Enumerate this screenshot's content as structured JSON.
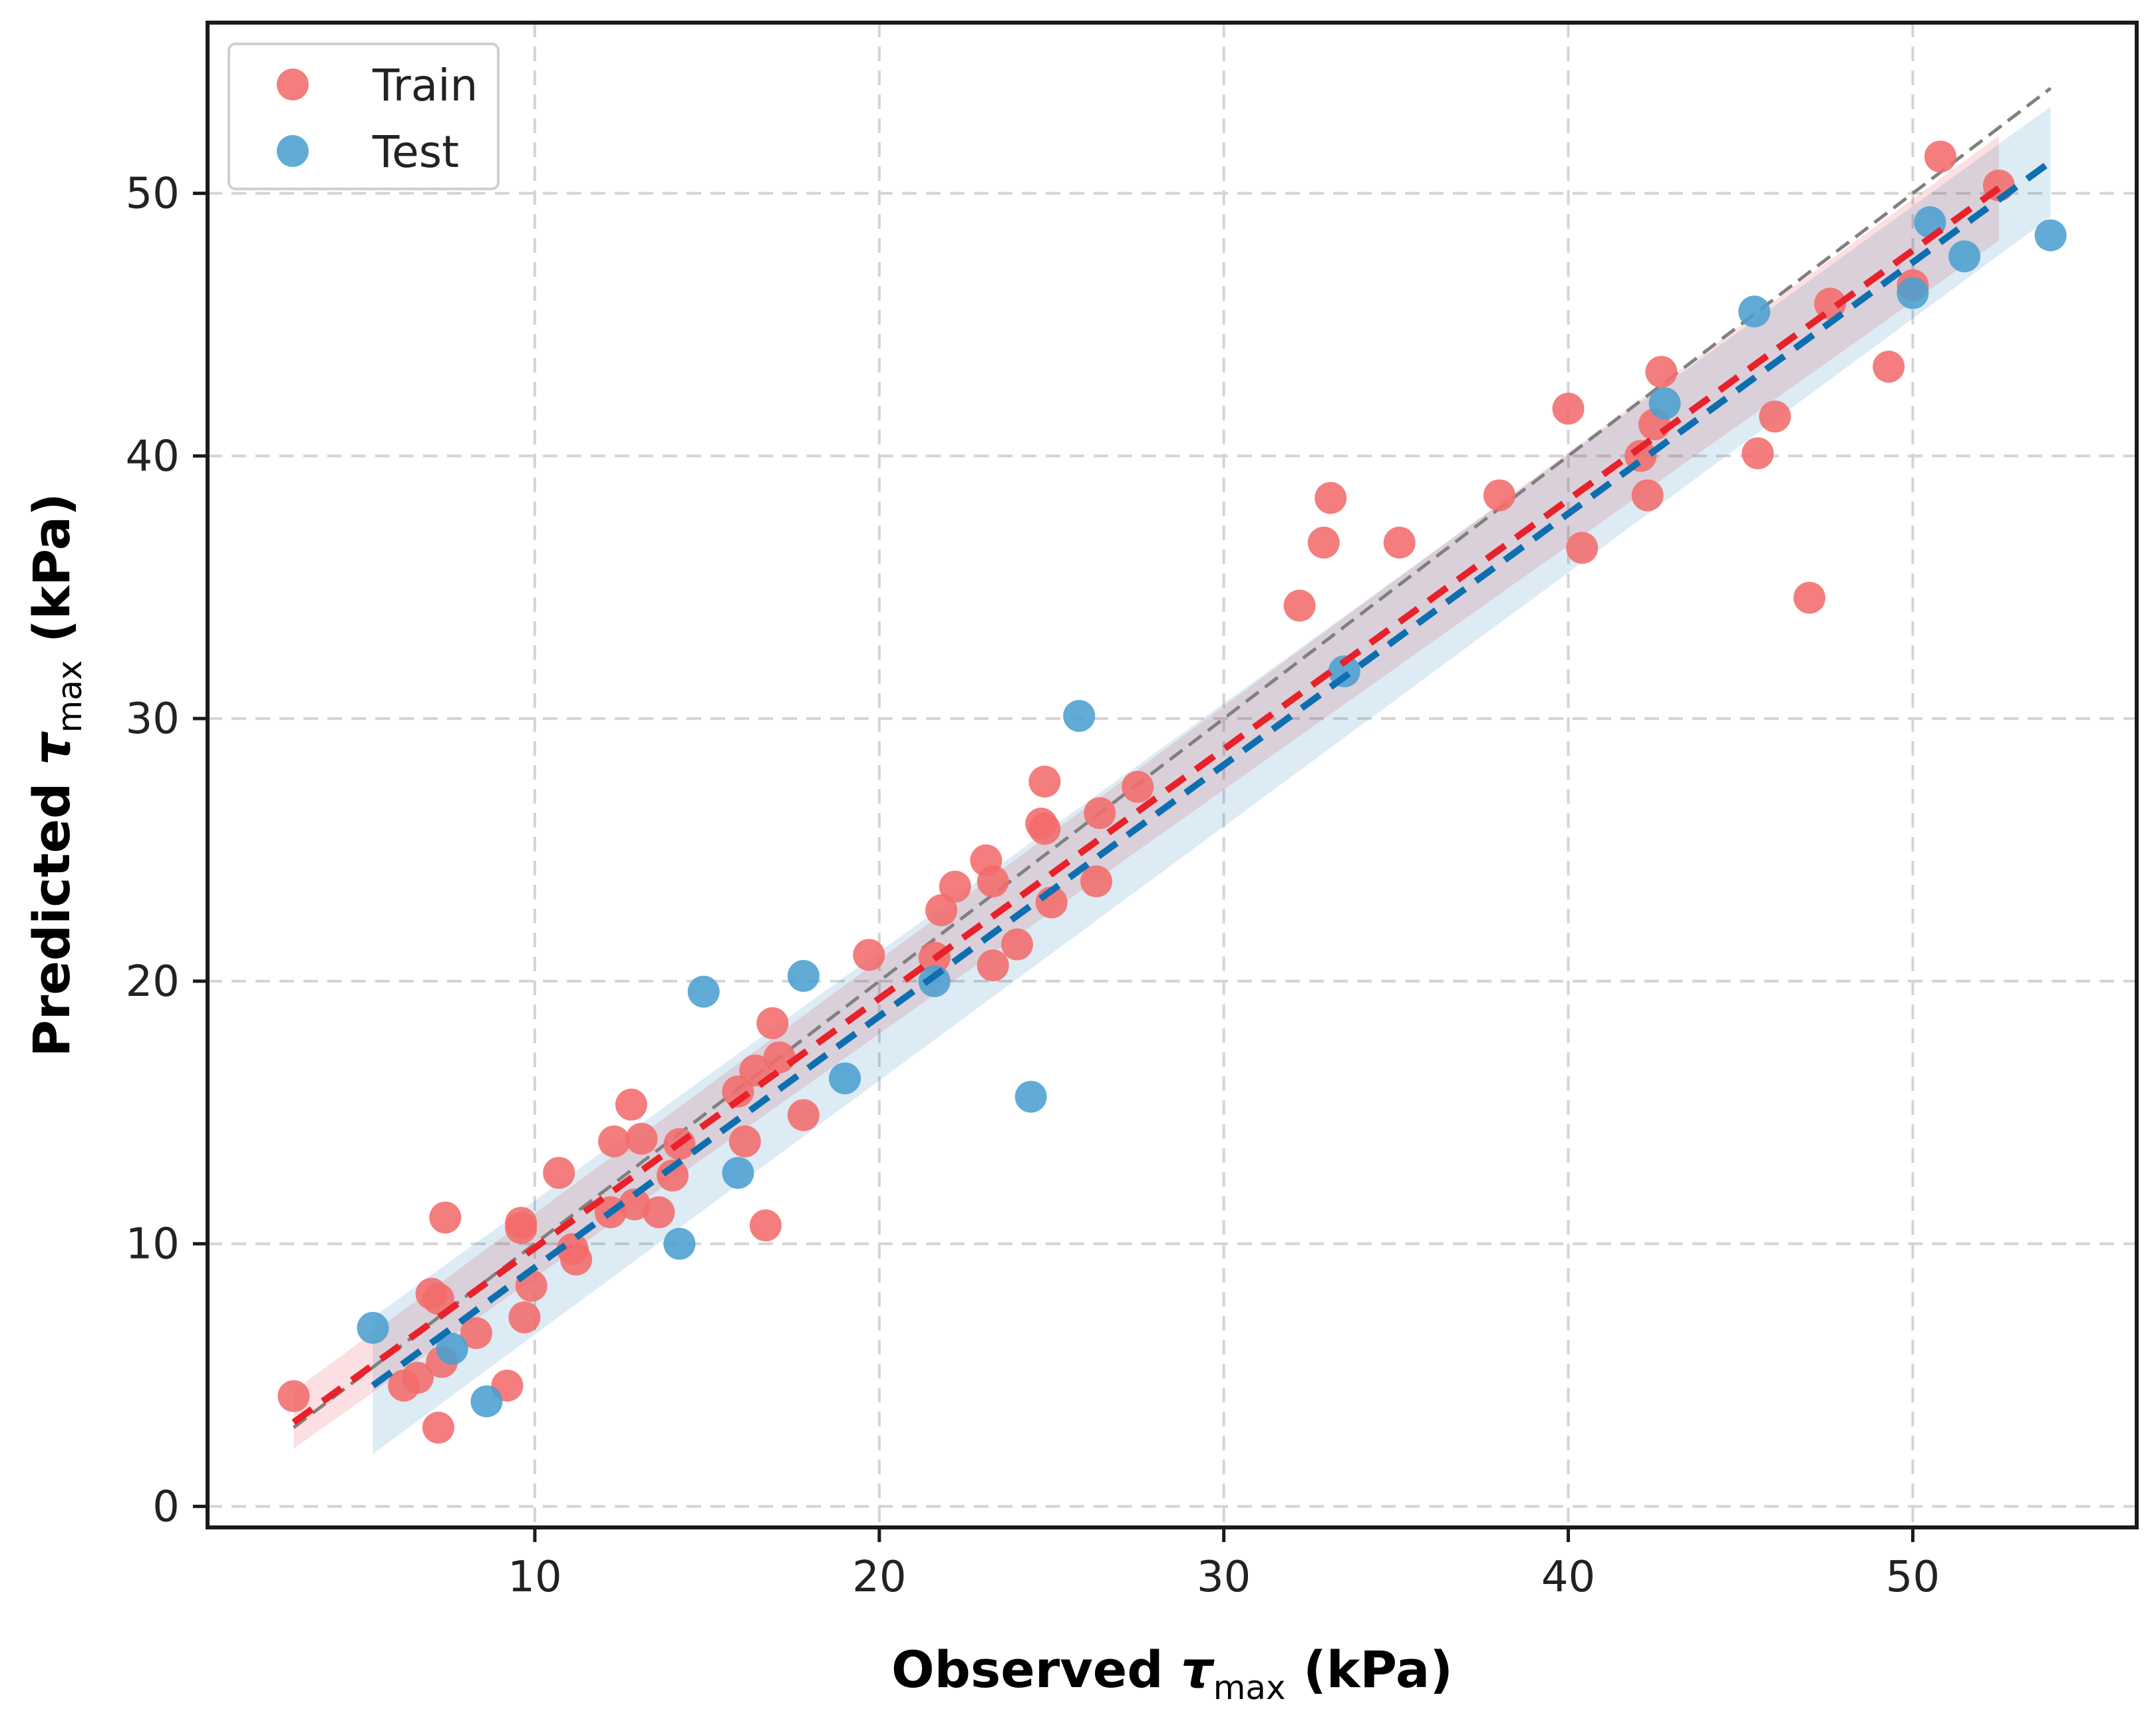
{
  "chart_data": {
    "type": "scatter",
    "xlabel": {
      "prefix": "Observed ",
      "symbol": "τ",
      "sub": "max",
      "suffix": " (kPa)"
    },
    "ylabel": {
      "prefix": "Predicted ",
      "symbol": "τ",
      "sub": "max",
      "suffix": " (kPa)"
    },
    "xlim": [
      0.5,
      56.5
    ],
    "ylim": [
      -0.8,
      56.5
    ],
    "x_ticks": [
      10,
      20,
      30,
      40,
      50
    ],
    "y_ticks": [
      0,
      10,
      20,
      30,
      40,
      50
    ],
    "grid": true,
    "legend_position": "top-left",
    "identity_line": {
      "x": [
        3,
        54
      ],
      "y": [
        3,
        54
      ],
      "color": "#808080"
    },
    "series": [
      {
        "name": "Train",
        "color": "#f26b6b",
        "fit_color": "#e8212a",
        "fit_x": [
          3,
          52.5
        ],
        "fit_y": [
          3.2,
          50.2
        ],
        "band_lower": [
          2.2,
          48.2
        ],
        "band_upper": [
          4.4,
          52.2
        ],
        "points": [
          [
            3,
            4.2
          ],
          [
            6.2,
            4.6
          ],
          [
            6.6,
            4.9
          ],
          [
            7.0,
            8.1
          ],
          [
            7.2,
            7.9
          ],
          [
            7.2,
            3.0
          ],
          [
            7.3,
            5.5
          ],
          [
            7.4,
            11.0
          ],
          [
            8.3,
            6.6
          ],
          [
            9.2,
            4.6
          ],
          [
            9.6,
            10.6
          ],
          [
            9.6,
            10.8
          ],
          [
            9.7,
            7.2
          ],
          [
            9.9,
            8.4
          ],
          [
            10.7,
            12.7
          ],
          [
            11.2,
            9.4
          ],
          [
            11.1,
            9.8
          ],
          [
            12.2,
            11.2
          ],
          [
            12.3,
            13.9
          ],
          [
            12.8,
            15.3
          ],
          [
            12.9,
            11.5
          ],
          [
            13.1,
            14.0
          ],
          [
            13.6,
            11.2
          ],
          [
            14.0,
            12.6
          ],
          [
            14.2,
            13.8
          ],
          [
            15.9,
            15.8
          ],
          [
            16.1,
            13.9
          ],
          [
            16.4,
            16.6
          ],
          [
            16.7,
            10.7
          ],
          [
            16.9,
            18.4
          ],
          [
            17.1,
            17.1
          ],
          [
            17.8,
            14.9
          ],
          [
            19.7,
            21.0
          ],
          [
            21.6,
            20.9
          ],
          [
            21.8,
            22.7
          ],
          [
            22.2,
            23.6
          ],
          [
            23.1,
            24.6
          ],
          [
            23.3,
            23.8
          ],
          [
            23.3,
            20.6
          ],
          [
            24.0,
            21.4
          ],
          [
            24.7,
            26.0
          ],
          [
            24.8,
            27.6
          ],
          [
            24.8,
            25.8
          ],
          [
            25.0,
            23.0
          ],
          [
            26.3,
            23.8
          ],
          [
            26.4,
            26.4
          ],
          [
            27.5,
            27.4
          ],
          [
            32.2,
            34.3
          ],
          [
            32.9,
            36.7
          ],
          [
            33.1,
            38.4
          ],
          [
            35.1,
            36.7
          ],
          [
            38.0,
            38.5
          ],
          [
            40.0,
            41.8
          ],
          [
            40.4,
            36.5
          ],
          [
            42.1,
            40.0
          ],
          [
            42.3,
            38.5
          ],
          [
            42.5,
            41.2
          ],
          [
            42.7,
            43.2
          ],
          [
            45.5,
            40.1
          ],
          [
            46.0,
            41.5
          ],
          [
            47.0,
            34.6
          ],
          [
            47.6,
            45.8
          ],
          [
            49.3,
            43.4
          ],
          [
            50.0,
            46.5
          ],
          [
            50.8,
            51.4
          ],
          [
            52.5,
            50.3
          ]
        ]
      },
      {
        "name": "Test",
        "color": "#4b9fd0",
        "fit_color": "#0d6fb0",
        "fit_x": [
          5.3,
          54
        ],
        "fit_y": [
          4.6,
          51.2
        ],
        "band_lower": [
          2.0,
          49.1
        ],
        "band_upper": [
          7.2,
          53.3
        ],
        "points": [
          [
            5.3,
            6.8
          ],
          [
            7.6,
            6.0
          ],
          [
            8.6,
            4.0
          ],
          [
            14.2,
            10.0
          ],
          [
            14.9,
            19.6
          ],
          [
            15.9,
            12.7
          ],
          [
            17.8,
            20.2
          ],
          [
            19.0,
            16.3
          ],
          [
            21.6,
            20.0
          ],
          [
            24.4,
            15.6
          ],
          [
            25.8,
            30.1
          ],
          [
            33.5,
            31.8
          ],
          [
            42.8,
            42.0
          ],
          [
            45.4,
            45.5
          ],
          [
            50.0,
            46.2
          ],
          [
            50.5,
            48.9
          ],
          [
            51.5,
            47.6
          ],
          [
            54.0,
            48.4
          ]
        ]
      }
    ]
  }
}
